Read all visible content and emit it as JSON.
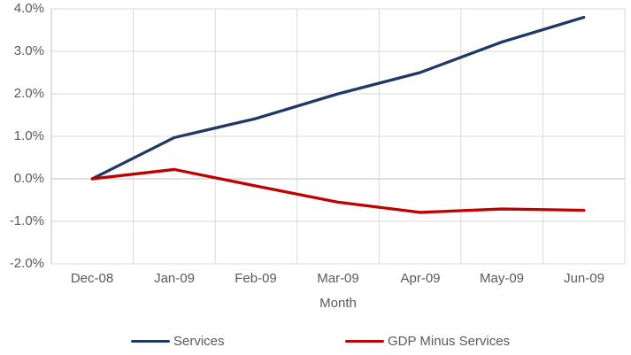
{
  "chart_data": {
    "type": "line",
    "x": [
      "Dec-08",
      "Jan-09",
      "Feb-09",
      "Mar-09",
      "Apr-09",
      "May-09",
      "Jun-09"
    ],
    "series": [
      {
        "name": "Services",
        "color": "#1f3864",
        "values": [
          0.0,
          0.97,
          1.42,
          2.0,
          2.5,
          3.22,
          3.8
        ]
      },
      {
        "name": "GDP Minus Services",
        "color": "#c00000",
        "values": [
          0.0,
          0.22,
          -0.17,
          -0.55,
          -0.79,
          -0.71,
          -0.74
        ]
      }
    ],
    "title": "",
    "xlabel": "Month",
    "ylabel": "",
    "ylim": [
      -2,
      4
    ],
    "ytick_step": 1,
    "ytick_labels": [
      "4.0%",
      "3.0%",
      "2.0%",
      "1.0%",
      "0.0%",
      "-1.0%",
      "-2.0%"
    ],
    "grid": "on",
    "legend_position": "bottom"
  },
  "colors": {
    "grid": "#d9d9d9",
    "axis": "#bfbfbf",
    "tick_text": "#595959",
    "series_1": "#1f3864",
    "series_2": "#c00000",
    "background": "#ffffff"
  },
  "legend": {
    "items": [
      {
        "label": "Services"
      },
      {
        "label": "GDP Minus Services"
      }
    ]
  }
}
